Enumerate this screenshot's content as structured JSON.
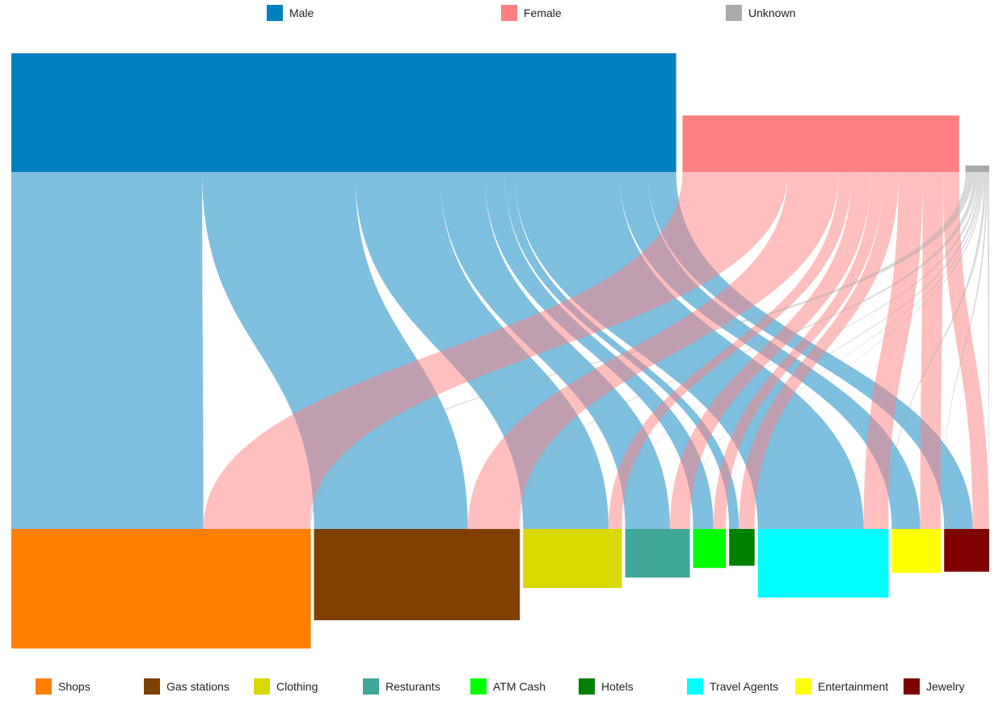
{
  "chart_data": {
    "type": "sankey",
    "sources": [
      {
        "name": "Male",
        "color": "#0080c0",
        "total": 822
      },
      {
        "name": "Female",
        "color": "#ff8080",
        "total": 342
      },
      {
        "name": "Unknown",
        "color": "#aaaaaa",
        "total": 6
      }
    ],
    "targets": [
      {
        "name": "Shops",
        "color": "#ff8000"
      },
      {
        "name": "Gas stations",
        "color": "#804000"
      },
      {
        "name": "Clothing",
        "color": "#d9d900"
      },
      {
        "name": "Resturants",
        "color": "#40a898"
      },
      {
        "name": "ATM Cash",
        "color": "#00ff00"
      },
      {
        "name": "Hotels",
        "color": "#008000"
      },
      {
        "name": "Travel Agents",
        "color": "#00ffff"
      },
      {
        "name": "Entertainment",
        "color": "#ffff00"
      },
      {
        "name": "Jewelry",
        "color": "#800000"
      }
    ],
    "flows": [
      {
        "source": "Male",
        "target": "Shops",
        "value": 236
      },
      {
        "source": "Male",
        "target": "Gas stations",
        "value": 189
      },
      {
        "source": "Male",
        "target": "Clothing",
        "value": 105
      },
      {
        "source": "Male",
        "target": "Resturants",
        "value": 55
      },
      {
        "source": "Male",
        "target": "ATM Cash",
        "value": 25
      },
      {
        "source": "Male",
        "target": "Hotels",
        "value": 12
      },
      {
        "source": "Male",
        "target": "Travel Agents",
        "value": 130
      },
      {
        "source": "Male",
        "target": "Entertainment",
        "value": 35
      },
      {
        "source": "Male",
        "target": "Jewelry",
        "value": 35
      },
      {
        "source": "Female",
        "target": "Shops",
        "value": 130
      },
      {
        "source": "Female",
        "target": "Gas stations",
        "value": 63
      },
      {
        "source": "Female",
        "target": "Clothing",
        "value": 16
      },
      {
        "source": "Female",
        "target": "Resturants",
        "value": 24
      },
      {
        "source": "Female",
        "target": "ATM Cash",
        "value": 15
      },
      {
        "source": "Female",
        "target": "Hotels",
        "value": 19
      },
      {
        "source": "Female",
        "target": "Travel Agents",
        "value": 30
      },
      {
        "source": "Female",
        "target": "Entertainment",
        "value": 25
      },
      {
        "source": "Female",
        "target": "Jewelry",
        "value": 20
      },
      {
        "source": "Unknown",
        "target": "Shops",
        "value": 2
      },
      {
        "source": "Unknown",
        "target": "Gas stations",
        "value": 1
      },
      {
        "source": "Unknown",
        "target": "Clothing",
        "value": 0.5
      },
      {
        "source": "Unknown",
        "target": "Resturants",
        "value": 0.5
      },
      {
        "source": "Unknown",
        "target": "ATM Cash",
        "value": 0.3
      },
      {
        "source": "Unknown",
        "target": "Hotels",
        "value": 0.3
      },
      {
        "source": "Unknown",
        "target": "Travel Agents",
        "value": 0.6
      },
      {
        "source": "Unknown",
        "target": "Entertainment",
        "value": 0.4
      },
      {
        "source": "Unknown",
        "target": "Jewelry",
        "value": 0.4
      }
    ],
    "legend_top": [
      "Male",
      "Female",
      "Unknown"
    ],
    "legend_bottom": [
      "Shops",
      "Gas stations",
      "Clothing",
      "Resturants",
      "ATM Cash",
      "Hotels",
      "Travel Agents",
      "Entertainment",
      "Jewelry"
    ]
  }
}
